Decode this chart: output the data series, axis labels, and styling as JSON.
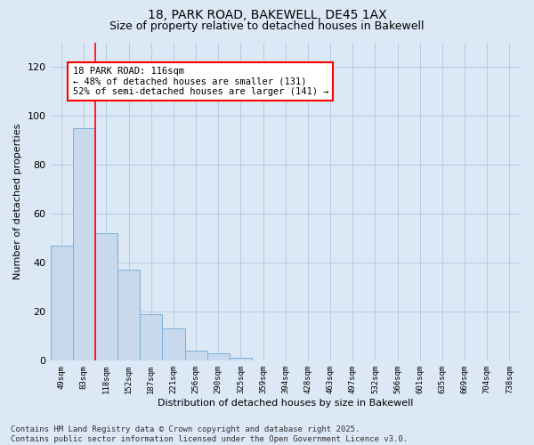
{
  "title": "18, PARK ROAD, BAKEWELL, DE45 1AX",
  "subtitle": "Size of property relative to detached houses in Bakewell",
  "xlabel": "Distribution of detached houses by size in Bakewell",
  "ylabel": "Number of detached properties",
  "categories": [
    "49sqm",
    "83sqm",
    "118sqm",
    "152sqm",
    "187sqm",
    "221sqm",
    "256sqm",
    "290sqm",
    "325sqm",
    "359sqm",
    "394sqm",
    "428sqm",
    "463sqm",
    "497sqm",
    "532sqm",
    "566sqm",
    "601sqm",
    "635sqm",
    "669sqm",
    "704sqm",
    "738sqm"
  ],
  "values": [
    47,
    95,
    52,
    37,
    19,
    13,
    4,
    3,
    1,
    0,
    0,
    0,
    0,
    0,
    0,
    0,
    0,
    0,
    0,
    0,
    0
  ],
  "bar_color": "#c8d9ee",
  "bar_edge_color": "#7aafd4",
  "red_line_index": 2,
  "annotation_text": "18 PARK ROAD: 116sqm\n← 48% of detached houses are smaller (131)\n52% of semi-detached houses are larger (141) →",
  "annotation_box_color": "white",
  "annotation_box_edge": "red",
  "ylim": [
    0,
    130
  ],
  "yticks": [
    0,
    20,
    40,
    60,
    80,
    100,
    120
  ],
  "grid_color": "#adc8e0",
  "background_color": "#dce8f5",
  "footer_line1": "Contains HM Land Registry data © Crown copyright and database right 2025.",
  "footer_line2": "Contains public sector information licensed under the Open Government Licence v3.0.",
  "title_fontsize": 10,
  "subtitle_fontsize": 9,
  "annotation_fontsize": 7.5,
  "footer_fontsize": 6.5,
  "xlabel_fontsize": 8,
  "ylabel_fontsize": 8,
  "xtick_fontsize": 6.5,
  "ytick_fontsize": 8
}
